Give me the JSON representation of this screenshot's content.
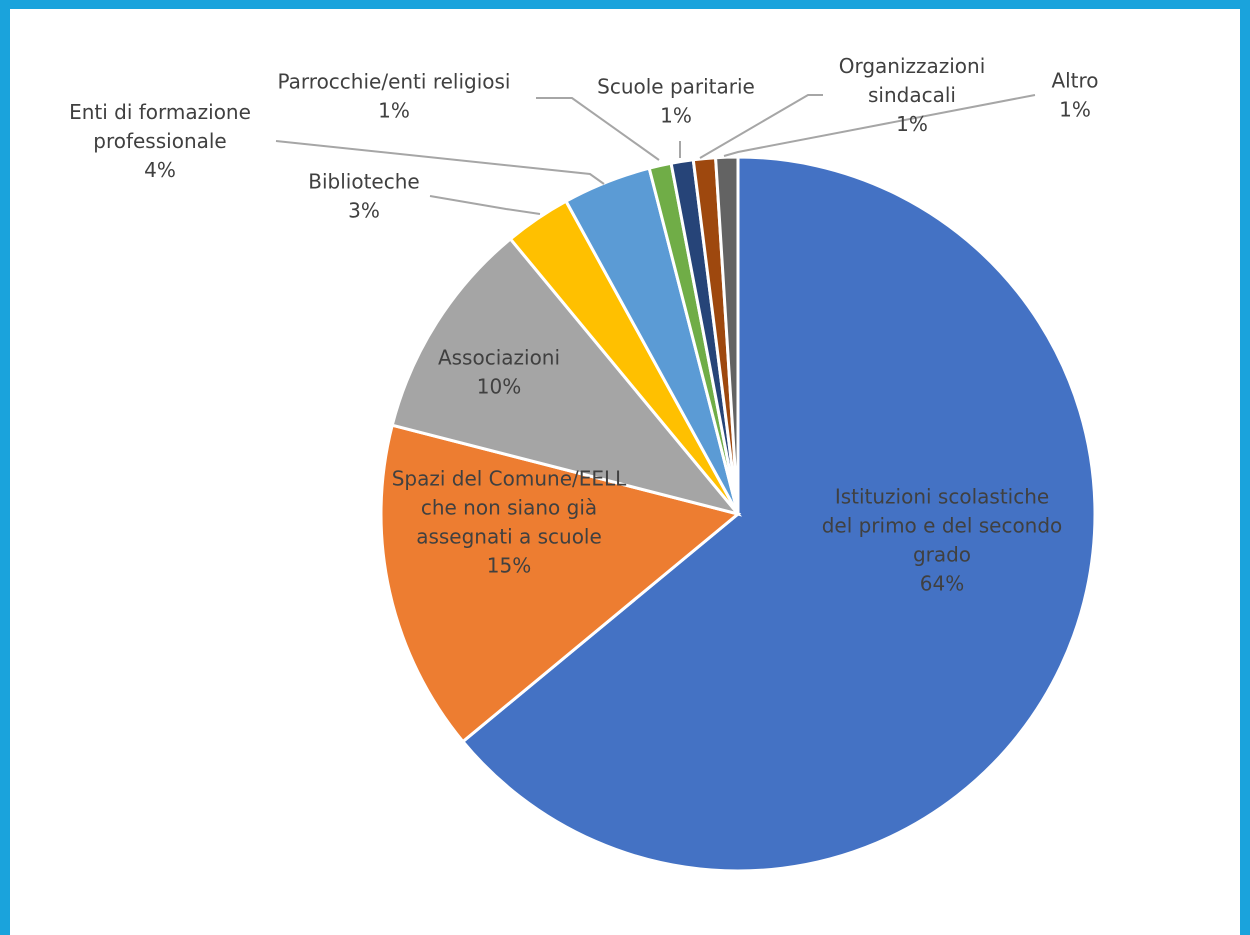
{
  "chart_data": {
    "type": "pie",
    "slices": [
      {
        "label_lines": [
          "Istituzioni scolastiche",
          "del primo e del secondo",
          "grado"
        ],
        "percent_label": "64%",
        "value": 64,
        "color": "#4472c4",
        "name": "slice-istituzioni-scolastiche"
      },
      {
        "label_lines": [
          "Spazi del Comune/EELL",
          "che non siano già",
          "assegnati a scuole"
        ],
        "percent_label": "15%",
        "value": 15,
        "color": "#ed7d31",
        "name": "slice-spazi-comune"
      },
      {
        "label_lines": [
          "Associazioni"
        ],
        "percent_label": "10%",
        "value": 10,
        "color": "#a5a5a5",
        "name": "slice-associazioni"
      },
      {
        "label_lines": [
          "Biblioteche"
        ],
        "percent_label": "3%",
        "value": 3,
        "color": "#ffc000",
        "name": "slice-biblioteche"
      },
      {
        "label_lines": [
          "Enti di formazione",
          "professionale"
        ],
        "percent_label": "4%",
        "value": 4,
        "color": "#5b9bd5",
        "name": "slice-enti-formazione"
      },
      {
        "label_lines": [
          "Parrocchie/enti religiosi"
        ],
        "percent_label": "1%",
        "value": 1,
        "color": "#70ad47",
        "name": "slice-parrocchie"
      },
      {
        "label_lines": [
          "Scuole paritarie"
        ],
        "percent_label": "1%",
        "value": 1,
        "color": "#264478",
        "name": "slice-scuole-paritarie"
      },
      {
        "label_lines": [
          "Organizzazioni",
          "sindacali"
        ],
        "percent_label": "1%",
        "value": 1,
        "color": "#9e480e",
        "name": "slice-organizzazioni-sindacali"
      },
      {
        "label_lines": [
          "Altro"
        ],
        "percent_label": "1%",
        "value": 1,
        "color": "#636363",
        "name": "slice-altro"
      }
    ],
    "frame_color": "#1aa3dc",
    "leader_line_color": "#a6a6a6"
  }
}
